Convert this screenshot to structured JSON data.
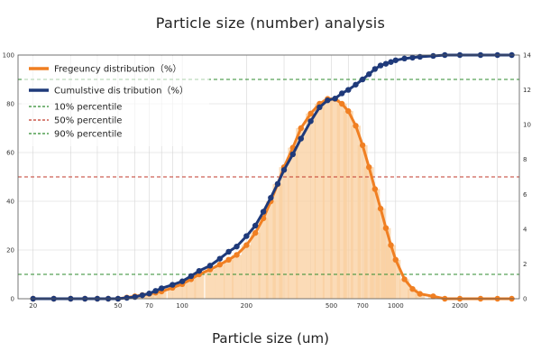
{
  "chart_data": {
    "type": "bar",
    "title": "Particle size (number) analysis",
    "xlabel": "Particle size (um)",
    "x_scale": "log",
    "xlim": [
      17,
      3800
    ],
    "ylim_left": [
      0,
      100
    ],
    "ylim_right": [
      0,
      14
    ],
    "x_ticks": [
      "20",
      "50",
      "70",
      "100",
      "200",
      "500",
      "700",
      "1000",
      "2000"
    ],
    "y_ticks_left": [
      "0",
      "20",
      "40",
      "60",
      "80",
      "100"
    ],
    "y_ticks_right": [
      "0",
      "2",
      "4",
      "6",
      "8",
      "10",
      "12",
      "14"
    ],
    "grid": true,
    "legend_position": "top-left",
    "series": [
      {
        "name": "Fregeuncy distribution（%）",
        "axis": "left",
        "color": "#f07f22",
        "x": [
          20,
          25,
          30,
          35,
          40,
          45,
          50,
          55,
          60,
          65,
          70,
          75,
          80,
          90,
          100,
          110,
          120,
          135,
          150,
          165,
          180,
          200,
          220,
          240,
          260,
          280,
          300,
          330,
          360,
          400,
          440,
          480,
          520,
          560,
          600,
          650,
          700,
          750,
          800,
          850,
          900,
          950,
          1000,
          1100,
          1200,
          1300,
          1500,
          1700,
          2000,
          2500,
          3000,
          3500
        ],
        "values": [
          0,
          0,
          0,
          0,
          0,
          0,
          0,
          0.5,
          1,
          1.5,
          2,
          2.5,
          3,
          4.5,
          6,
          8,
          10,
          12,
          14,
          16,
          18,
          22,
          27,
          33,
          40,
          47,
          54,
          62,
          70,
          76,
          80,
          82,
          82,
          80,
          77,
          71,
          63,
          54,
          45,
          37,
          29,
          22,
          16,
          8,
          4,
          2,
          1,
          0,
          0,
          0,
          0,
          0
        ]
      },
      {
        "name": "Cumulstive dis tribution（%）",
        "axis": "right",
        "color": "#1f3a7a",
        "x": [
          20,
          25,
          30,
          35,
          40,
          45,
          50,
          55,
          60,
          65,
          70,
          75,
          80,
          90,
          100,
          110,
          120,
          135,
          150,
          165,
          180,
          200,
          220,
          240,
          260,
          280,
          300,
          330,
          360,
          400,
          440,
          480,
          520,
          560,
          600,
          650,
          700,
          750,
          800,
          850,
          900,
          950,
          1000,
          1100,
          1200,
          1300,
          1500,
          1700,
          2000,
          2500,
          3000,
          3500
        ],
        "values": [
          0,
          0,
          0,
          0,
          0,
          0,
          0,
          0.05,
          0.1,
          0.2,
          0.3,
          0.45,
          0.6,
          0.8,
          1.0,
          1.3,
          1.6,
          1.9,
          2.3,
          2.7,
          3.0,
          3.6,
          4.2,
          5.0,
          5.8,
          6.6,
          7.4,
          8.3,
          9.2,
          10.2,
          11.0,
          11.4,
          11.5,
          11.8,
          12.0,
          12.3,
          12.6,
          12.9,
          13.2,
          13.4,
          13.5,
          13.6,
          13.7,
          13.8,
          13.85,
          13.9,
          13.95,
          14,
          14,
          14,
          14,
          14
        ]
      },
      {
        "name": "10% percentile",
        "type": "hline",
        "axis": "left",
        "value": 10,
        "color": "#2e8b2e"
      },
      {
        "name": "50% percentile",
        "type": "hline",
        "axis": "left",
        "value": 50,
        "color": "#c0392b"
      },
      {
        "name": "90% percentile",
        "type": "hline",
        "axis": "left",
        "value": 90,
        "color": "#2e8b2e"
      }
    ]
  }
}
